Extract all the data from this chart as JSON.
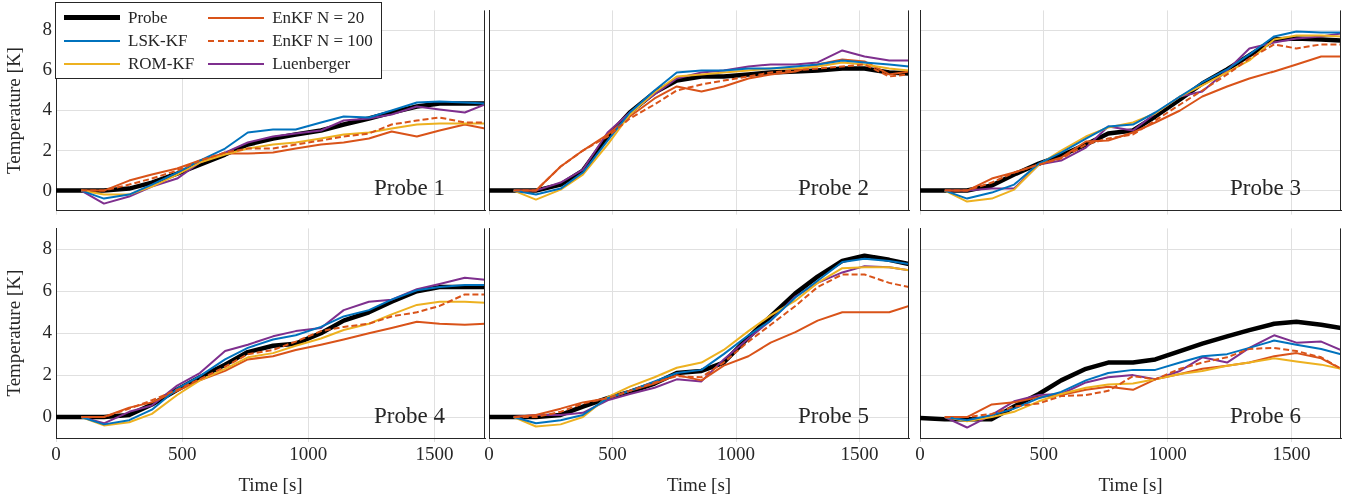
{
  "chart_data": [
    {
      "type": "line",
      "ylabel": "Temperature [K]",
      "annotations": [
        "Probe 1"
      ],
      "x": [
        0,
        100,
        190,
        290,
        380,
        480,
        570,
        670,
        760,
        860,
        950,
        1050,
        1140,
        1240,
        1330,
        1430,
        1520,
        1620,
        1700
      ],
      "xlim": [
        0,
        1700
      ],
      "xticks": [
        0,
        500,
        1000,
        1500
      ],
      "ylim": [
        -1,
        9
      ],
      "yticks": [
        0,
        2,
        4,
        6,
        8
      ],
      "grid": true,
      "legend": "top left",
      "tick_labels": "y",
      "series": [
        {
          "name": "Probe",
          "color": "#000000",
          "values": [
            0,
            0,
            0,
            0.1,
            0.4,
            0.85,
            1.3,
            1.8,
            2.3,
            2.6,
            2.8,
            3.0,
            3.3,
            3.6,
            3.9,
            4.2,
            4.35,
            4.35,
            4.35
          ]
        },
        {
          "name": "LSK-KF",
          "color": "#0072bd",
          "values": [
            null,
            0,
            -0.4,
            -0.2,
            0.3,
            0.9,
            1.5,
            2.1,
            2.9,
            3.05,
            3.05,
            3.4,
            3.7,
            3.65,
            4.0,
            4.4,
            4.45,
            4.4,
            4.35
          ]
        },
        {
          "name": "ROM-KF",
          "color": "#edb120",
          "values": [
            null,
            0,
            -0.2,
            -0.2,
            0.2,
            0.8,
            1.4,
            1.8,
            2.1,
            2.3,
            2.4,
            2.6,
            2.8,
            2.9,
            3.1,
            3.3,
            3.35,
            3.35,
            3.35
          ]
        },
        {
          "name": "EnKF N = 20",
          "color": "#d95319",
          "values": [
            null,
            0,
            0,
            0.5,
            0.8,
            1.1,
            1.5,
            1.85,
            1.85,
            1.9,
            2.1,
            2.3,
            2.4,
            2.6,
            2.95,
            2.7,
            3.0,
            3.3,
            3.1
          ]
        },
        {
          "name": "EnKF N = 100",
          "color": "#d95319",
          "line_style": "dashed",
          "values": [
            null,
            0,
            0,
            0.3,
            0.6,
            1.0,
            1.5,
            1.9,
            2.1,
            2.1,
            2.3,
            2.5,
            2.7,
            2.85,
            3.3,
            3.5,
            3.65,
            3.4,
            3.4
          ]
        },
        {
          "name": "Luenberger",
          "color": "#7e2f8e",
          "values": [
            null,
            0,
            -0.65,
            -0.3,
            0.2,
            0.6,
            1.4,
            1.9,
            2.4,
            2.7,
            2.85,
            3.0,
            3.5,
            3.6,
            3.8,
            4.2,
            4.05,
            3.9,
            4.3
          ]
        }
      ]
    },
    {
      "type": "line",
      "annotations": [
        "Probe 2"
      ],
      "x": [
        0,
        100,
        190,
        290,
        380,
        480,
        570,
        670,
        760,
        860,
        950,
        1050,
        1140,
        1240,
        1330,
        1430,
        1520,
        1620,
        1700
      ],
      "xlim": [
        0,
        1700
      ],
      "xticks": [
        0,
        500,
        1000,
        1500
      ],
      "ylim": [
        -1,
        9
      ],
      "yticks": [
        0,
        2,
        4,
        6,
        8
      ],
      "grid": true,
      "tick_labels": false,
      "series": [
        {
          "color": "#000000",
          "values": [
            0,
            0,
            0,
            0.3,
            1.0,
            2.7,
            3.9,
            4.9,
            5.5,
            5.7,
            5.7,
            5.8,
            5.9,
            5.95,
            6.0,
            6.1,
            6.1,
            5.9,
            5.85
          ]
        },
        {
          "color": "#0072bd",
          "values": [
            null,
            0,
            -0.2,
            0.1,
            0.9,
            2.5,
            3.9,
            5.0,
            5.9,
            6.0,
            6.0,
            6.1,
            6.1,
            6.2,
            6.3,
            6.5,
            6.4,
            6.3,
            6.2
          ]
        },
        {
          "color": "#edb120",
          "values": [
            null,
            0,
            -0.45,
            0.05,
            0.8,
            2.3,
            3.8,
            4.9,
            5.7,
            5.8,
            5.9,
            6.0,
            6.1,
            6.1,
            6.2,
            6.4,
            6.3,
            6.1,
            6.0
          ]
        },
        {
          "color": "#d95319",
          "values": [
            null,
            0,
            0,
            1.2,
            2.0,
            2.8,
            3.7,
            4.6,
            5.2,
            4.95,
            5.2,
            5.6,
            5.8,
            5.95,
            6.3,
            6.55,
            6.45,
            5.8,
            5.95
          ]
        },
        {
          "color": "#d95319",
          "line_style": "dashed",
          "values": [
            null,
            0,
            0,
            1.2,
            2.0,
            2.7,
            3.6,
            4.3,
            5.0,
            5.3,
            5.5,
            5.7,
            5.9,
            6.0,
            6.1,
            6.2,
            6.3,
            5.7,
            5.8
          ]
        },
        {
          "color": "#7e2f8e",
          "values": [
            null,
            0,
            0,
            0.4,
            1.05,
            2.9,
            3.9,
            4.8,
            5.6,
            5.9,
            6.0,
            6.2,
            6.3,
            6.3,
            6.4,
            7.0,
            6.7,
            6.5,
            6.5
          ]
        }
      ]
    },
    {
      "type": "line",
      "annotations": [
        "Probe 3"
      ],
      "x": [
        0,
        100,
        190,
        290,
        380,
        480,
        570,
        670,
        760,
        860,
        950,
        1050,
        1140,
        1240,
        1330,
        1430,
        1520,
        1620,
        1700
      ],
      "xlim": [
        0,
        1700
      ],
      "xticks": [
        0,
        500,
        1000,
        1500
      ],
      "ylim": [
        -1,
        9
      ],
      "yticks": [
        0,
        2,
        4,
        6,
        8
      ],
      "grid": true,
      "tick_labels": false,
      "series": [
        {
          "color": "#000000",
          "values": [
            0,
            0,
            0,
            0.25,
            0.8,
            1.35,
            1.75,
            2.3,
            2.85,
            3.0,
            3.7,
            4.55,
            5.35,
            6.05,
            6.75,
            7.55,
            7.6,
            7.55,
            7.5
          ]
        },
        {
          "color": "#0072bd",
          "values": [
            null,
            0,
            -0.4,
            -0.1,
            0.3,
            1.35,
            1.9,
            2.6,
            3.2,
            3.3,
            3.9,
            4.7,
            5.4,
            6.05,
            6.8,
            7.7,
            7.95,
            7.9,
            7.9
          ]
        },
        {
          "color": "#edb120",
          "values": [
            null,
            0,
            -0.55,
            -0.4,
            0.05,
            1.3,
            2.0,
            2.7,
            3.15,
            3.4,
            3.85,
            4.7,
            5.25,
            5.9,
            6.5,
            7.55,
            7.75,
            7.75,
            7.7
          ]
        },
        {
          "color": "#d95319",
          "values": [
            null,
            0,
            0,
            0.6,
            0.9,
            1.3,
            1.65,
            2.45,
            2.5,
            2.9,
            3.4,
            4.0,
            4.7,
            5.2,
            5.6,
            5.95,
            6.3,
            6.7,
            6.7
          ]
        },
        {
          "color": "#d95319",
          "line_style": "dashed",
          "values": [
            null,
            0,
            0,
            0.4,
            0.9,
            1.3,
            1.6,
            2.3,
            2.6,
            2.8,
            3.5,
            4.3,
            5.0,
            5.8,
            6.6,
            7.3,
            7.1,
            7.3,
            7.3
          ]
        },
        {
          "color": "#7e2f8e",
          "values": [
            null,
            0,
            0,
            0.1,
            0.1,
            1.3,
            1.5,
            2.15,
            3.2,
            3.0,
            3.85,
            4.7,
            4.95,
            6.0,
            7.1,
            7.4,
            7.6,
            7.7,
            7.85
          ]
        }
      ]
    },
    {
      "type": "line",
      "ylabel": "Temperature [K]",
      "xlabel": "Time [s]",
      "annotations": [
        "Probe 4"
      ],
      "x": [
        0,
        100,
        190,
        290,
        380,
        480,
        570,
        670,
        760,
        860,
        950,
        1050,
        1140,
        1240,
        1330,
        1430,
        1520,
        1620,
        1700
      ],
      "xlim": [
        0,
        1700
      ],
      "xticks": [
        0,
        500,
        1000,
        1500
      ],
      "ylim": [
        -1,
        9
      ],
      "yticks": [
        0,
        2,
        4,
        6,
        8
      ],
      "grid": true,
      "series": [
        {
          "color": "#000000",
          "values": [
            0,
            0,
            0,
            0.1,
            0.6,
            1.3,
            1.9,
            2.5,
            3.1,
            3.4,
            3.5,
            4.0,
            4.6,
            5.0,
            5.5,
            6.0,
            6.2,
            6.2,
            6.2
          ]
        },
        {
          "color": "#0072bd",
          "values": [
            null,
            0,
            -0.35,
            -0.15,
            0.35,
            1.35,
            1.95,
            2.75,
            3.3,
            3.7,
            3.9,
            4.3,
            4.8,
            5.1,
            5.6,
            6.05,
            6.2,
            6.3,
            6.3
          ]
        },
        {
          "color": "#edb120",
          "values": [
            null,
            0,
            -0.4,
            -0.25,
            0.15,
            1.05,
            1.75,
            2.3,
            2.85,
            3.05,
            3.4,
            3.75,
            4.15,
            4.45,
            4.9,
            5.35,
            5.5,
            5.5,
            5.45
          ]
        },
        {
          "color": "#d95319",
          "values": [
            null,
            0,
            0,
            0.45,
            0.7,
            1.25,
            1.75,
            2.2,
            2.75,
            2.9,
            3.2,
            3.45,
            3.7,
            4.0,
            4.25,
            4.55,
            4.45,
            4.4,
            4.45
          ]
        },
        {
          "color": "#d95319",
          "line_style": "dashed",
          "values": [
            null,
            0,
            0,
            0.4,
            0.8,
            1.3,
            1.8,
            2.4,
            3.0,
            3.2,
            3.6,
            4.1,
            4.3,
            4.45,
            4.8,
            5.0,
            5.3,
            5.85,
            5.85
          ]
        },
        {
          "color": "#7e2f8e",
          "values": [
            null,
            0,
            -0.3,
            0.25,
            0.55,
            1.5,
            2.1,
            3.15,
            3.45,
            3.85,
            4.1,
            4.25,
            5.1,
            5.5,
            5.6,
            6.1,
            6.35,
            6.65,
            6.55
          ]
        }
      ]
    },
    {
      "type": "line",
      "xlabel": "Time [s]",
      "annotations": [
        "Probe 5"
      ],
      "x": [
        0,
        100,
        190,
        290,
        380,
        480,
        570,
        670,
        760,
        860,
        950,
        1050,
        1140,
        1240,
        1330,
        1430,
        1520,
        1620,
        1700
      ],
      "xlim": [
        0,
        1700
      ],
      "xticks": [
        0,
        500,
        1000,
        1500
      ],
      "ylim": [
        -1,
        9
      ],
      "yticks": [
        0,
        2,
        4,
        6,
        8
      ],
      "grid": true,
      "tick_labels": "x",
      "series": [
        {
          "color": "#000000",
          "values": [
            0,
            0,
            0,
            0.1,
            0.5,
            0.9,
            1.2,
            1.6,
            2.1,
            2.2,
            2.6,
            3.8,
            4.8,
            5.9,
            6.7,
            7.45,
            7.7,
            7.5,
            7.3
          ]
        },
        {
          "color": "#0072bd",
          "values": [
            null,
            0,
            -0.3,
            -0.15,
            0.1,
            0.9,
            1.25,
            1.7,
            2.1,
            2.25,
            3.0,
            3.9,
            4.6,
            5.7,
            6.5,
            7.4,
            7.55,
            7.45,
            7.3
          ]
        },
        {
          "color": "#edb120",
          "values": [
            null,
            0,
            -0.45,
            -0.35,
            0,
            0.95,
            1.45,
            1.9,
            2.35,
            2.6,
            3.2,
            4.1,
            4.85,
            5.55,
            6.4,
            7.1,
            7.15,
            7.15,
            7.0
          ]
        },
        {
          "color": "#d95319",
          "values": [
            null,
            0,
            0.1,
            0.4,
            0.7,
            0.9,
            1.25,
            1.6,
            2.0,
            1.75,
            2.45,
            2.9,
            3.55,
            4.05,
            4.6,
            5.0,
            5.0,
            5.0,
            5.3
          ]
        },
        {
          "color": "#d95319",
          "line_style": "dashed",
          "values": [
            null,
            0,
            0,
            0.25,
            0.65,
            0.9,
            1.25,
            1.65,
            1.95,
            1.9,
            2.6,
            3.6,
            4.4,
            5.3,
            6.2,
            6.8,
            6.8,
            6.4,
            6.2
          ]
        },
        {
          "color": "#7e2f8e",
          "values": [
            null,
            0,
            0.1,
            0.1,
            0.2,
            0.8,
            1.1,
            1.4,
            1.8,
            1.7,
            2.75,
            3.75,
            4.6,
            5.75,
            6.4,
            6.9,
            7.2,
            7.15,
            7.0
          ]
        }
      ]
    },
    {
      "type": "line",
      "xlabel": "Time [s]",
      "annotations": [
        "Probe 6"
      ],
      "x": [
        0,
        100,
        190,
        290,
        380,
        480,
        570,
        670,
        760,
        860,
        950,
        1050,
        1140,
        1240,
        1330,
        1430,
        1520,
        1620,
        1700
      ],
      "xlim": [
        0,
        1700
      ],
      "xticks": [
        0,
        500,
        1000,
        1500
      ],
      "ylim": [
        -1,
        9
      ],
      "yticks": [
        0,
        2,
        4,
        6,
        8
      ],
      "grid": true,
      "tick_labels": "x",
      "series": [
        {
          "color": "#000000",
          "values": [
            -0.05,
            -0.1,
            -0.1,
            -0.1,
            0.5,
            1.1,
            1.75,
            2.3,
            2.6,
            2.6,
            2.75,
            3.15,
            3.5,
            3.85,
            4.15,
            4.45,
            4.55,
            4.4,
            4.25
          ]
        },
        {
          "color": "#0072bd",
          "values": [
            null,
            0,
            -0.15,
            0.1,
            0.4,
            0.9,
            1.2,
            1.75,
            2.1,
            2.25,
            2.25,
            2.6,
            2.9,
            3.0,
            3.3,
            3.65,
            3.45,
            3.25,
            3.0
          ]
        },
        {
          "color": "#edb120",
          "values": [
            null,
            0,
            -0.2,
            0,
            0.25,
            0.75,
            1.1,
            1.4,
            1.55,
            1.6,
            1.8,
            2.05,
            2.2,
            2.45,
            2.6,
            2.8,
            2.65,
            2.5,
            2.3
          ]
        },
        {
          "color": "#d95319",
          "values": [
            null,
            0,
            0,
            0.6,
            0.7,
            0.95,
            1.05,
            1.3,
            1.45,
            1.3,
            1.8,
            2.05,
            2.3,
            2.45,
            2.6,
            2.9,
            3.05,
            2.8,
            2.3
          ]
        },
        {
          "color": "#d95319",
          "line_style": "dashed",
          "values": [
            null,
            0,
            0,
            0.15,
            0.5,
            0.65,
            1.0,
            1.05,
            1.25,
            1.95,
            1.8,
            2.3,
            2.6,
            2.85,
            3.25,
            3.3,
            3.15,
            2.85,
            2.3
          ]
        },
        {
          "color": "#7e2f8e",
          "values": [
            null,
            0,
            -0.5,
            0.1,
            0.75,
            1.05,
            1.1,
            1.65,
            1.9,
            2.0,
            1.8,
            2.2,
            2.85,
            2.6,
            3.3,
            3.9,
            3.55,
            3.6,
            3.2
          ]
        }
      ]
    }
  ]
}
